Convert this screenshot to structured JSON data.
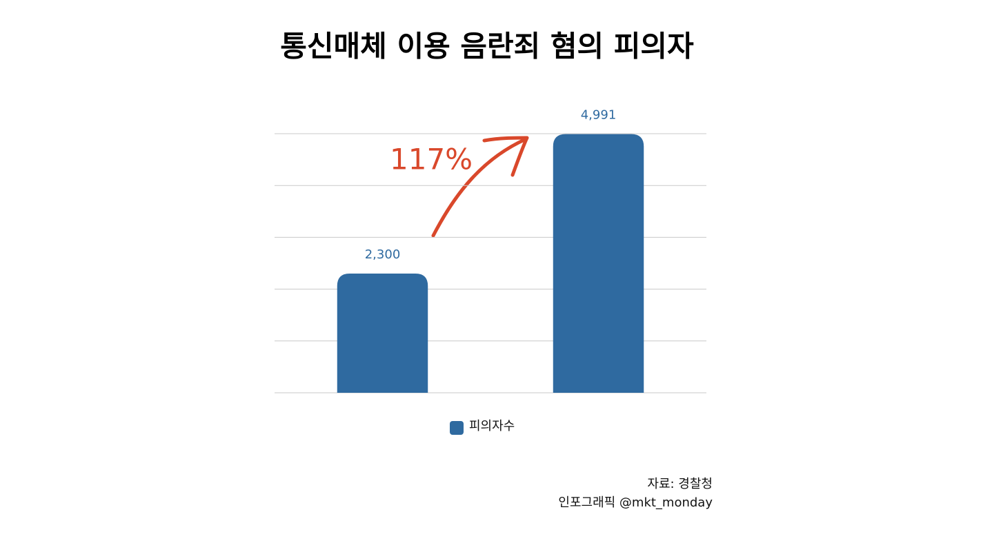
{
  "chart_data": {
    "type": "bar",
    "title": "통신매체 이용 음란죄 혐의 피의자",
    "categories": [
      null,
      null
    ],
    "series": [
      {
        "name": "피의자수",
        "color": "#2f6aa0",
        "values": [
          2300,
          4991
        ],
        "value_labels": [
          "2,300",
          "4,991"
        ]
      }
    ],
    "ylim": [
      0,
      5000
    ],
    "yticks": [
      0,
      1000,
      2000,
      3000,
      4000,
      5000
    ],
    "grid": true,
    "annotation": "117%",
    "source": [
      "자료: 경찰청",
      "인포그래픽 @mkt_monday"
    ]
  }
}
